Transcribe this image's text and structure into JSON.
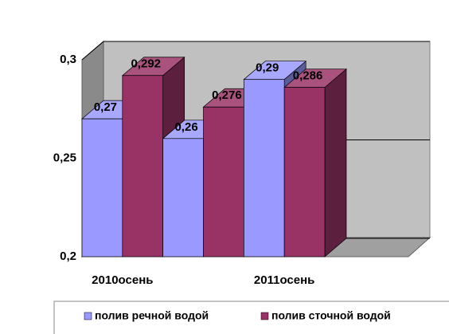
{
  "chart_data": {
    "type": "bar",
    "categories": [
      "2010осень",
      null,
      "2011осень"
    ],
    "series": [
      {
        "name": "полив речной водой",
        "color": "#9999ff",
        "values": [
          0.27,
          0.26,
          0.29
        ],
        "value_labels": [
          "0,27",
          "0,26",
          "0,29"
        ]
      },
      {
        "name": "полив сточной водой",
        "color": "#993366",
        "values": [
          0.292,
          0.276,
          0.286
        ],
        "value_labels": [
          "0,292",
          "0,276",
          "0,286"
        ]
      }
    ],
    "ylim": [
      0.2,
      0.3
    ],
    "yticks": [
      {
        "value": 0.2,
        "label": "0,2"
      },
      {
        "value": 0.25,
        "label": "0,25"
      },
      {
        "value": 0.3,
        "label": "0,3"
      }
    ],
    "grid": true,
    "legend": "bottom"
  }
}
